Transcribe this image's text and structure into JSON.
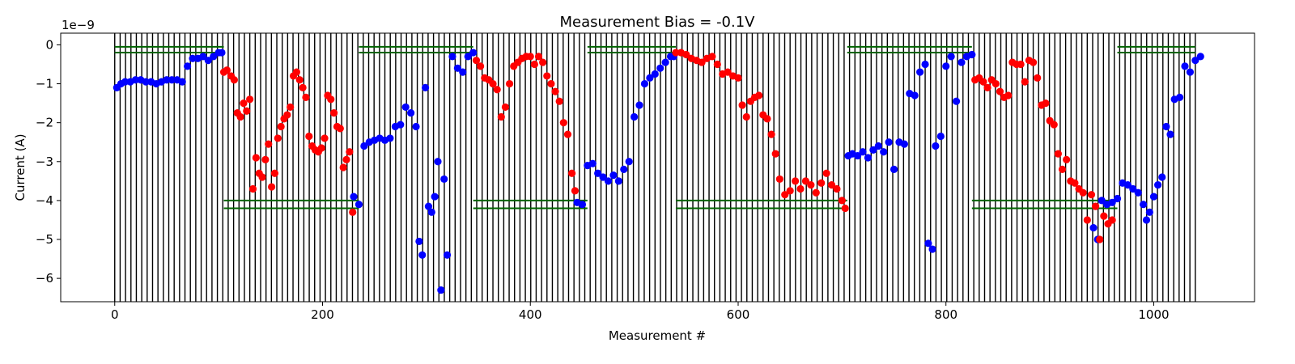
{
  "chart_data": {
    "type": "scatter",
    "title": "Measurement Bias = -0.1V",
    "xlabel": "Measurement #",
    "ylabel": "Current (A)",
    "y_offset_label": "1e−9",
    "xlim": [
      -52,
      1097
    ],
    "ylim": [
      -6.6,
      0.3
    ],
    "xticks": [
      0,
      200,
      400,
      600,
      800,
      1000
    ],
    "xtick_labels": [
      "0",
      "200",
      "400",
      "600",
      "800",
      "1000"
    ],
    "yticks": [
      0,
      -1,
      -2,
      -3,
      -4,
      -5,
      -6
    ],
    "ytick_labels": [
      "0",
      "−1",
      "−2",
      "−3",
      "−4",
      "−5",
      "−6"
    ],
    "grid": false,
    "legend": "none",
    "colors": {
      "blue": "#0000ff",
      "red": "#ff0000",
      "green": "#006400",
      "black": "#000000"
    },
    "vertical_lines": {
      "start": 0,
      "end": 1040,
      "step": 5.2
    },
    "green_guides": [
      {
        "x_start": 0,
        "x_end": 105,
        "y": [
          -0.05,
          -0.2
        ]
      },
      {
        "x_start": 105,
        "x_end": 235,
        "y": [
          -4.0,
          -4.2
        ]
      },
      {
        "x_start": 235,
        "x_end": 345,
        "y": [
          -0.05,
          -0.2
        ]
      },
      {
        "x_start": 345,
        "x_end": 455,
        "y": [
          -4.0,
          -4.2
        ]
      },
      {
        "x_start": 455,
        "x_end": 540,
        "y": [
          -0.05,
          -0.2
        ]
      },
      {
        "x_start": 540,
        "x_end": 705,
        "y": [
          -4.0,
          -4.2
        ]
      },
      {
        "x_start": 705,
        "x_end": 825,
        "y": [
          -0.05,
          -0.2
        ]
      },
      {
        "x_start": 825,
        "x_end": 965,
        "y": [
          -4.0,
          -4.2
        ]
      },
      {
        "x_start": 965,
        "x_end": 1040,
        "y": [
          -0.05,
          -0.2
        ]
      }
    ],
    "series": [
      {
        "color": "blue",
        "x": [
          2,
          6,
          10,
          15,
          20,
          25,
          30,
          35,
          40,
          45,
          50,
          55,
          60,
          65,
          70,
          75,
          80,
          85,
          90,
          95,
          100,
          103,
          230,
          235,
          240,
          245,
          250,
          255,
          260,
          265,
          270,
          275,
          280,
          285,
          290,
          293,
          296,
          299,
          302,
          305,
          308,
          311,
          314,
          317,
          320,
          325,
          330,
          335,
          340,
          345,
          445,
          450,
          455,
          460,
          465,
          470,
          475,
          480,
          485,
          490,
          495,
          500,
          505,
          510,
          515,
          520,
          525,
          530,
          535,
          538,
          706,
          710,
          715,
          720,
          725,
          730,
          735,
          740,
          745,
          750,
          755,
          760,
          765,
          770,
          775,
          780,
          783,
          787,
          790,
          795,
          800,
          805,
          810,
          815,
          820,
          825,
          942,
          946,
          950,
          955,
          960,
          965,
          970,
          975,
          980,
          985,
          990,
          993,
          996,
          1000,
          1004,
          1008,
          1012,
          1016,
          1020,
          1025,
          1030,
          1035,
          1040,
          1045
        ],
        "y": [
          -1.1,
          -1.0,
          -0.95,
          -0.95,
          -0.9,
          -0.9,
          -0.95,
          -0.95,
          -1.0,
          -0.95,
          -0.9,
          -0.9,
          -0.9,
          -0.95,
          -0.55,
          -0.35,
          -0.35,
          -0.3,
          -0.4,
          -0.3,
          -0.2,
          -0.2,
          -3.9,
          -4.1,
          -2.6,
          -2.5,
          -2.45,
          -2.4,
          -2.45,
          -2.4,
          -2.1,
          -2.05,
          -1.6,
          -1.75,
          -2.1,
          -5.05,
          -5.4,
          -1.1,
          -4.15,
          -4.3,
          -3.9,
          -3.0,
          -6.3,
          -3.45,
          -5.4,
          -0.3,
          -0.6,
          -0.7,
          -0.3,
          -0.2,
          -4.05,
          -4.1,
          -3.1,
          -3.05,
          -3.3,
          -3.4,
          -3.5,
          -3.35,
          -3.5,
          -3.2,
          -3.0,
          -1.85,
          -1.55,
          -1.0,
          -0.85,
          -0.75,
          -0.6,
          -0.45,
          -0.3,
          -0.3,
          -2.85,
          -2.8,
          -2.85,
          -2.75,
          -2.9,
          -2.7,
          -2.6,
          -2.75,
          -2.5,
          -3.2,
          -2.5,
          -2.55,
          -1.25,
          -1.3,
          -0.7,
          -0.5,
          -5.1,
          -5.25,
          -2.6,
          -2.35,
          -0.55,
          -0.3,
          -1.45,
          -0.45,
          -0.3,
          -0.25,
          -4.7,
          -5.0,
          -4.0,
          -4.1,
          -4.05,
          -3.95,
          -3.55,
          -3.6,
          -3.7,
          -3.8,
          -4.1,
          -4.5,
          -4.3,
          -3.9,
          -3.6,
          -3.4,
          -2.1,
          -2.3,
          -1.4,
          -1.35,
          -0.55,
          -0.7,
          -0.4,
          -0.3
        ]
      },
      {
        "color": "red",
        "x": [
          105,
          108,
          112,
          115,
          118,
          121,
          124,
          127,
          130,
          133,
          136,
          139,
          142,
          145,
          148,
          151,
          154,
          157,
          160,
          163,
          166,
          169,
          172,
          175,
          178,
          181,
          184,
          187,
          190,
          193,
          196,
          199,
          202,
          205,
          208,
          211,
          214,
          217,
          220,
          223,
          226,
          229,
          348,
          352,
          356,
          360,
          364,
          368,
          372,
          376,
          380,
          384,
          388,
          392,
          396,
          400,
          404,
          408,
          412,
          416,
          420,
          424,
          428,
          432,
          436,
          440,
          443,
          540,
          545,
          550,
          555,
          560,
          565,
          570,
          575,
          580,
          585,
          590,
          595,
          600,
          604,
          608,
          612,
          616,
          620,
          624,
          628,
          632,
          636,
          640,
          645,
          650,
          655,
          660,
          665,
          670,
          675,
          680,
          685,
          690,
          695,
          700,
          703,
          828,
          832,
          836,
          840,
          844,
          848,
          852,
          856,
          860,
          864,
          868,
          872,
          876,
          880,
          884,
          888,
          892,
          896,
          900,
          904,
          908,
          912,
          916,
          920,
          924,
          928,
          932,
          936,
          940,
          944,
          948,
          952,
          956,
          960
        ],
        "y": [
          -0.7,
          -0.65,
          -0.8,
          -0.9,
          -1.75,
          -1.85,
          -1.5,
          -1.7,
          -1.4,
          -3.7,
          -2.9,
          -3.3,
          -3.4,
          -2.95,
          -2.55,
          -3.65,
          -3.3,
          -2.4,
          -2.1,
          -1.9,
          -1.8,
          -1.6,
          -0.8,
          -0.7,
          -0.9,
          -1.1,
          -1.35,
          -2.35,
          -2.6,
          -2.7,
          -2.75,
          -2.65,
          -2.4,
          -1.3,
          -1.4,
          -1.75,
          -2.1,
          -2.15,
          -3.15,
          -2.95,
          -2.75,
          -4.3,
          -0.4,
          -0.55,
          -0.85,
          -0.9,
          -1.0,
          -1.15,
          -1.85,
          -1.6,
          -1.0,
          -0.55,
          -0.45,
          -0.35,
          -0.3,
          -0.3,
          -0.5,
          -0.3,
          -0.45,
          -0.8,
          -1.0,
          -1.2,
          -1.45,
          -2.0,
          -2.3,
          -3.3,
          -3.75,
          -0.2,
          -0.2,
          -0.25,
          -0.35,
          -0.4,
          -0.45,
          -0.35,
          -0.3,
          -0.5,
          -0.75,
          -0.7,
          -0.8,
          -0.85,
          -1.55,
          -1.85,
          -1.45,
          -1.35,
          -1.3,
          -1.8,
          -1.9,
          -2.3,
          -2.8,
          -3.45,
          -3.85,
          -3.75,
          -3.5,
          -3.7,
          -3.5,
          -3.6,
          -3.8,
          -3.55,
          -3.3,
          -3.6,
          -3.7,
          -4.0,
          -4.2,
          -0.9,
          -0.85,
          -0.95,
          -1.1,
          -0.9,
          -1.0,
          -1.2,
          -1.35,
          -1.3,
          -0.45,
          -0.5,
          -0.5,
          -0.95,
          -0.4,
          -0.45,
          -0.85,
          -1.55,
          -1.5,
          -1.95,
          -2.05,
          -2.8,
          -3.2,
          -2.95,
          -3.5,
          -3.55,
          -3.7,
          -3.8,
          -4.5,
          -3.85,
          -4.15,
          -5.0,
          -4.4,
          -4.6,
          -4.5
        ]
      }
    ]
  }
}
